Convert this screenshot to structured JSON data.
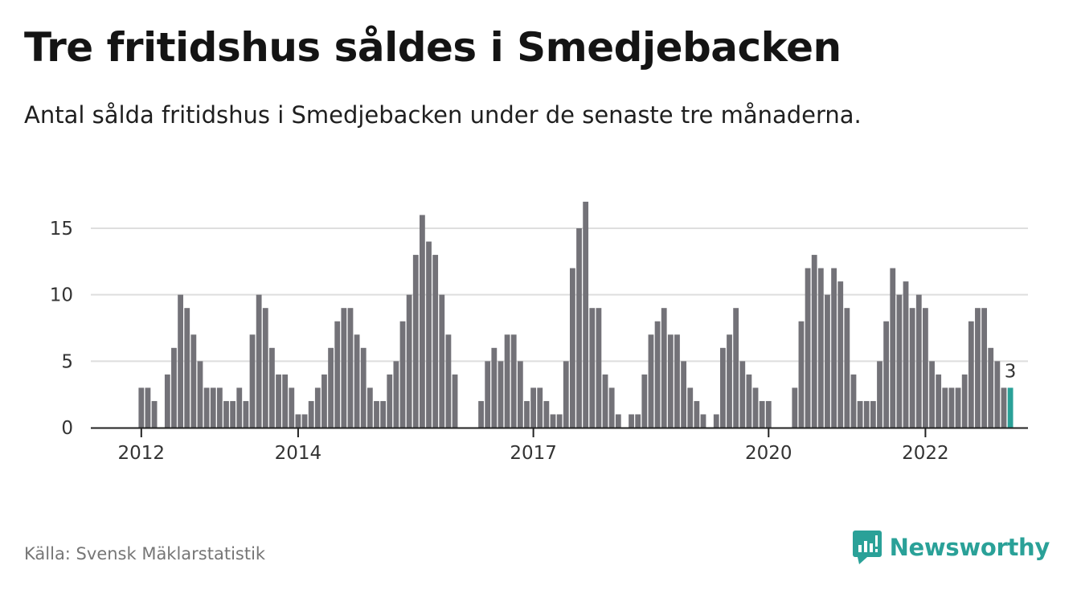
{
  "title": "Tre fritidshus såldes i Smedjebacken",
  "subtitle": "Antal sålda fritidshus i Smedjebacken under de senaste tre månaderna.",
  "source": "Källa: Svensk Mäklarstatistik",
  "brand": {
    "name": "Newsworthy",
    "icon": "newsworthy-logo-icon"
  },
  "colors": {
    "bar": "#737278",
    "highlight": "#2aa198",
    "grid": "#dedede",
    "axis": "#222222"
  },
  "chart_data": {
    "type": "bar",
    "x_ticks": [
      "2012",
      "2014",
      "2017",
      "2020",
      "2022"
    ],
    "y_ticks": [
      0,
      5,
      10,
      15
    ],
    "ylim": [
      0,
      17
    ],
    "grid": true,
    "highlight_label": "3",
    "values": [
      null,
      null,
      null,
      null,
      null,
      null,
      null,
      3,
      3,
      2,
      null,
      4,
      6,
      10,
      9,
      7,
      5,
      3,
      3,
      3,
      2,
      2,
      3,
      2,
      7,
      10,
      9,
      6,
      4,
      4,
      3,
      1,
      1,
      2,
      3,
      4,
      6,
      8,
      9,
      9,
      7,
      6,
      3,
      2,
      2,
      4,
      5,
      8,
      10,
      13,
      16,
      14,
      13,
      10,
      7,
      4,
      null,
      null,
      null,
      2,
      5,
      6,
      5,
      7,
      7,
      5,
      2,
      3,
      3,
      2,
      1,
      1,
      5,
      12,
      15,
      17,
      9,
      9,
      4,
      3,
      1,
      null,
      1,
      1,
      4,
      7,
      8,
      9,
      7,
      7,
      5,
      3,
      2,
      1,
      null,
      1,
      6,
      7,
      9,
      5,
      4,
      3,
      2,
      2,
      null,
      null,
      null,
      3,
      8,
      12,
      13,
      12,
      10,
      12,
      11,
      9,
      4,
      2,
      2,
      2,
      5,
      8,
      12,
      10,
      11,
      9,
      10,
      9,
      5,
      4,
      3,
      3,
      3,
      4,
      8,
      9,
      9,
      6,
      5,
      3,
      3
    ]
  }
}
